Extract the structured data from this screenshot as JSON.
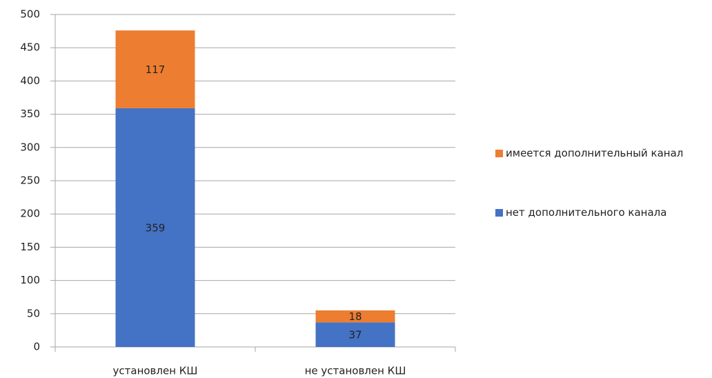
{
  "chart_data": {
    "type": "stacked_bar",
    "categories": [
      "установлен КШ",
      "не установлен КШ"
    ],
    "series": [
      {
        "name": "нет дополнительного канала",
        "color": "#4472c4",
        "values": [
          359,
          37
        ]
      },
      {
        "name": "имеется дополнительный канал",
        "color": "#ed7d31",
        "values": [
          117,
          18
        ]
      }
    ],
    "ylim": [
      0,
      500
    ],
    "yticks": [
      0,
      50,
      100,
      150,
      200,
      250,
      300,
      350,
      400,
      450,
      500
    ],
    "grid": true,
    "legend": "right"
  }
}
